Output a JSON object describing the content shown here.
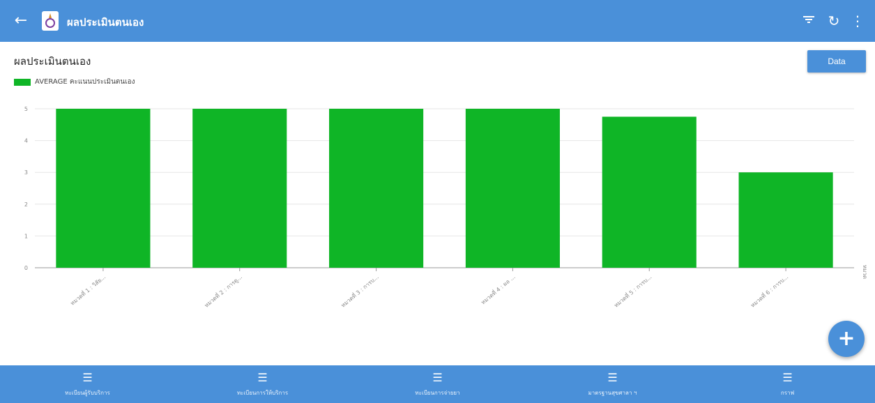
{
  "appbar": {
    "title": "ผลประเมินตนเอง"
  },
  "page": {
    "title": "ผลประเมินตนเอง",
    "data_button": "Data"
  },
  "legend": {
    "label": "AVERAGE คะแนนประเมินตนเอง"
  },
  "colors": {
    "primary": "#4a90d9",
    "bar": "#0fb526"
  },
  "chart_data": {
    "type": "bar",
    "categories": [
      "หมวดที่ 1 : วิสัย...",
      "หมวดที่ 2 : การดู...",
      "หมวดที่ 3 : การบ...",
      "หมวดที่ 4 : ผล ...",
      "หมวดที่ 5 : การบ...",
      "หมวดที่ 6 : การบ..."
    ],
    "series": [
      {
        "name": "AVERAGE คะแนนประเมินตนเอง",
        "values": [
          5,
          5,
          5,
          5,
          4.75,
          3
        ]
      }
    ],
    "yticks": [
      "0",
      "1",
      "2",
      "3",
      "4",
      "5"
    ],
    "ylim": [
      0,
      5
    ],
    "xlabel": "หมวด",
    "ylabel": "",
    "grid": true,
    "legend": "top-left"
  },
  "bottom_nav": [
    {
      "label": "ทะเบียนผู้รับบริการ",
      "icon": "list-icon"
    },
    {
      "label": "ทะเบียนการให้บริการ",
      "icon": "list-icon"
    },
    {
      "label": "ทะเบียนการจ่ายยา",
      "icon": "list-icon"
    },
    {
      "label": "มาตรฐานสุขศาลา ฯ",
      "icon": "list-icon"
    },
    {
      "label": "กราฟ",
      "icon": "list-icon"
    }
  ]
}
